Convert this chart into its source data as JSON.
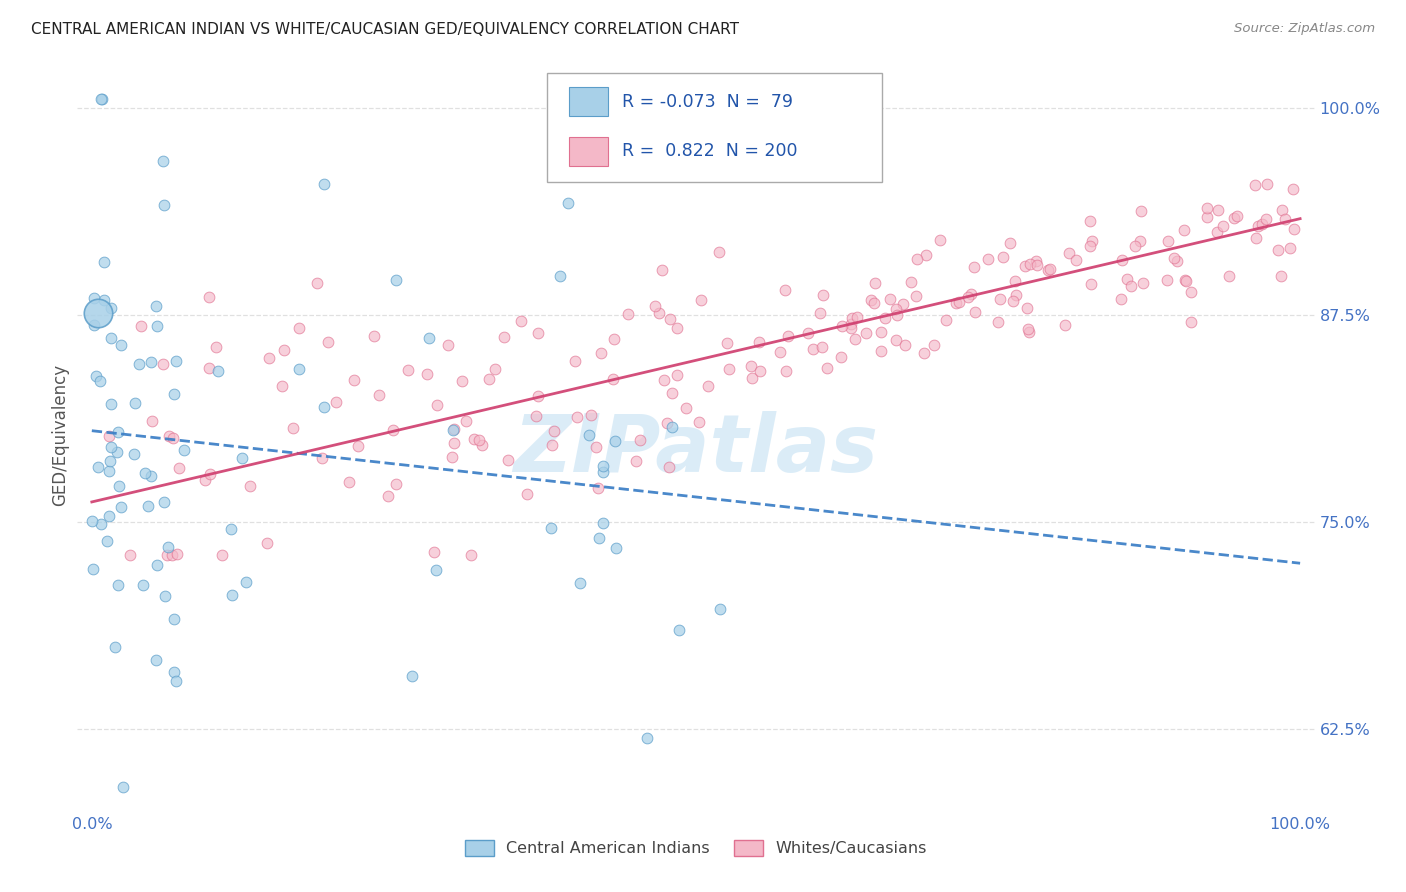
{
  "title": "CENTRAL AMERICAN INDIAN VS WHITE/CAUCASIAN GED/EQUIVALENCY CORRELATION CHART",
  "source": "Source: ZipAtlas.com",
  "ylabel": "GED/Equivalency",
  "ytick_vals": [
    0.625,
    0.75,
    0.875,
    1.0
  ],
  "legend_label1": "Central American Indians",
  "legend_label2": "Whites/Caucasians",
  "legend_r1": "-0.073",
  "legend_n1": " 79",
  "legend_r2": "0.822",
  "legend_n2": "200",
  "color_blue_fill": "#a8d0e8",
  "color_blue_edge": "#5b9dc9",
  "color_pink_fill": "#f4b8c8",
  "color_pink_edge": "#e07090",
  "color_blue_line": "#3a7ec6",
  "color_pink_line": "#d04070",
  "watermark_color": "#cce5f5",
  "xmin": 0.0,
  "xmax": 1.0,
  "ymin": 0.575,
  "ymax": 1.03,
  "blue_trend_x0": 0.0,
  "blue_trend_y0": 0.805,
  "blue_trend_x1": 1.0,
  "blue_trend_y1": 0.725,
  "pink_trend_x0": 0.0,
  "pink_trend_y0": 0.762,
  "pink_trend_x1": 1.0,
  "pink_trend_y1": 0.933
}
